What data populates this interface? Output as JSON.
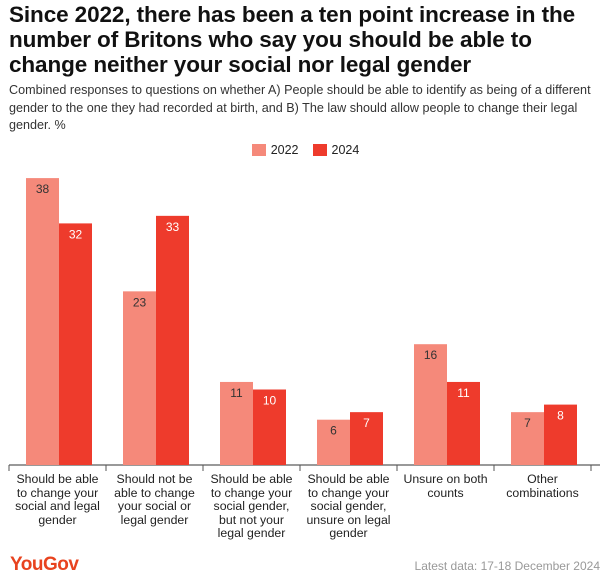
{
  "title": "Since 2022, there has been a ten point increase in the number of Britons who say you should be able to change neither your social nor legal gender",
  "subtitle": "Combined responses to questions on whether A) People should be able to identify as being of a different gender to the one they had recorded at birth, and B) The law should allow people to change their legal gender. %",
  "footer": {
    "logo": "YouGov",
    "note": "Latest data: 17-18 December 2024"
  },
  "chart_data": {
    "type": "bar",
    "title": "Since 2022, there has been a ten point increase in the number of Britons who say you should be able to change neither your social nor legal gender",
    "xlabel": "",
    "ylabel": "%",
    "ylim": [
      0,
      40
    ],
    "grid": false,
    "legend_position": "top-center",
    "categories": [
      "Should be able to change your social and legal gender",
      "Should not be able to change your social or legal gender",
      "Should be able to change your social gender, but not your legal gender",
      "Should be able to change your social gender, unsure on legal gender",
      "Unsure on both counts",
      "Other combinations"
    ],
    "series": [
      {
        "name": "2022",
        "color": "#f5897a",
        "values": [
          38,
          23,
          11,
          6,
          16,
          7
        ]
      },
      {
        "name": "2024",
        "color": "#ee3b2c",
        "values": [
          32,
          33,
          10,
          7,
          11,
          8
        ]
      }
    ]
  }
}
